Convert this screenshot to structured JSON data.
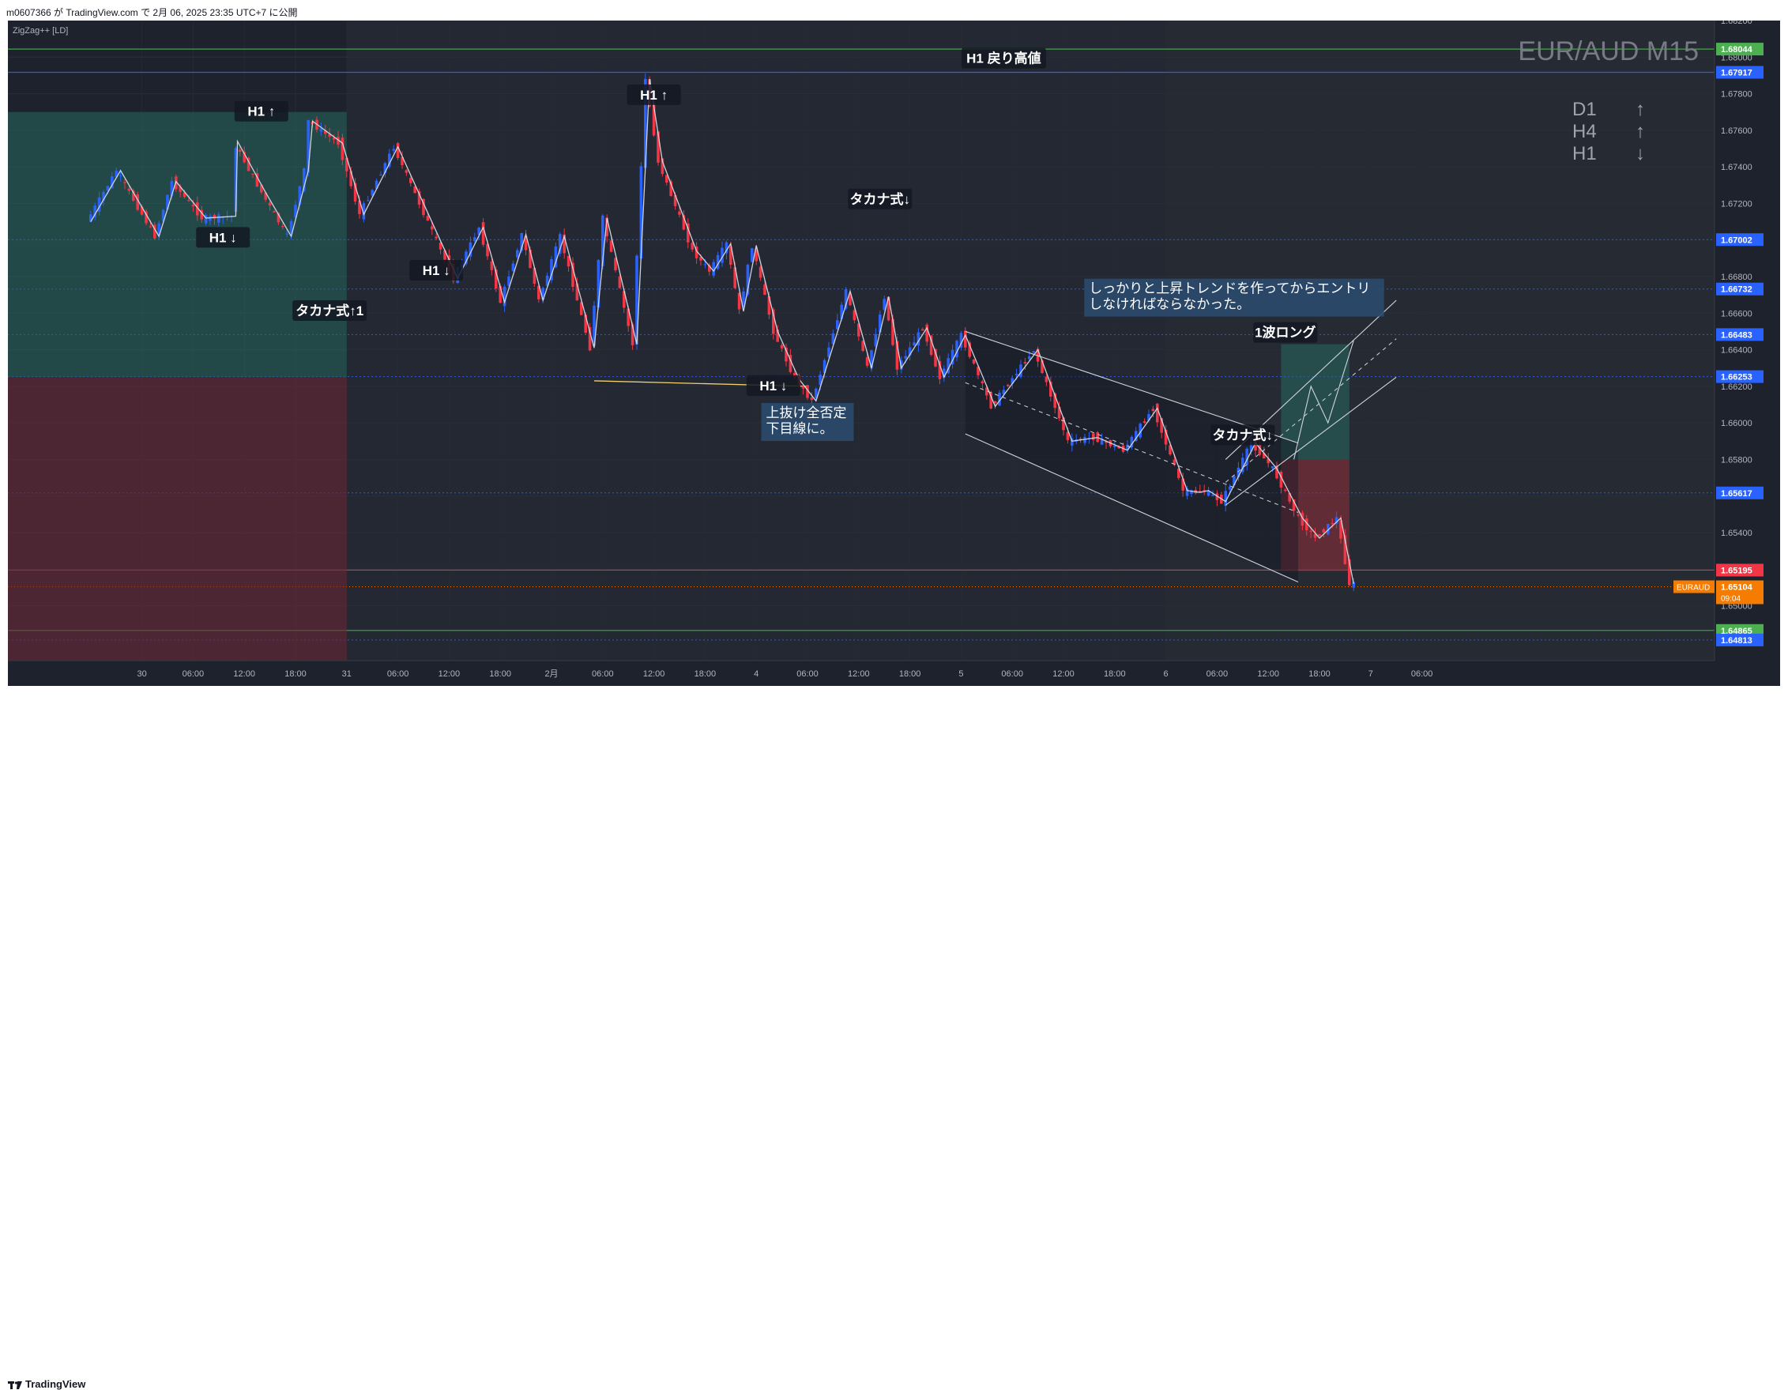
{
  "header": {
    "publish_info": "m0607366 が TradingView.com で 2月 06, 2025 23:35 UTC+7 に公開"
  },
  "footer": {
    "brand": "TradingView"
  },
  "indicator": {
    "label": "ZigZag++ [LD]"
  },
  "watermark": {
    "symbol_timeframe": "EUR/AUD M15"
  },
  "trend_panel": [
    {
      "tf": "D1",
      "arrow": "↑"
    },
    {
      "tf": "H4",
      "arrow": "↑"
    },
    {
      "tf": "H1",
      "arrow": "↓"
    }
  ],
  "colors": {
    "background": "#1e222d",
    "up_candle": "#2962ff",
    "down_candle": "#f23645",
    "zigzag": "#e0e3eb",
    "green_level": "#4caf50",
    "red_level": "#f23645",
    "blue_level": "#2962ff",
    "orange_price": "#f57c00"
  },
  "chart_data": {
    "type": "candlestick",
    "symbol": "EURAUD",
    "timeframe": "M15",
    "ylim": [
      1.647,
      1.682
    ],
    "y_ticks": [
      "1.68200",
      "1.68000",
      "1.67800",
      "1.67600",
      "1.67400",
      "1.67200",
      "1.67000",
      "1.66800",
      "1.66600",
      "1.66400",
      "1.66200",
      "1.66000",
      "1.65800",
      "1.65600",
      "1.65400",
      "1.65200",
      "1.65000"
    ],
    "x_ticks": [
      {
        "label": "30",
        "t": 12
      },
      {
        "label": "06:00",
        "t": 18
      },
      {
        "label": "12:00",
        "t": 24
      },
      {
        "label": "18:00",
        "t": 30
      },
      {
        "label": "31",
        "t": 36
      },
      {
        "label": "06:00",
        "t": 42
      },
      {
        "label": "12:00",
        "t": 48
      },
      {
        "label": "18:00",
        "t": 54
      },
      {
        "label": "2月",
        "t": 60
      },
      {
        "label": "06:00",
        "t": 66
      },
      {
        "label": "12:00",
        "t": 72
      },
      {
        "label": "18:00",
        "t": 78
      },
      {
        "label": "4",
        "t": 84
      },
      {
        "label": "06:00",
        "t": 90
      },
      {
        "label": "12:00",
        "t": 96
      },
      {
        "label": "18:00",
        "t": 102
      },
      {
        "label": "5",
        "t": 108
      },
      {
        "label": "06:00",
        "t": 114
      },
      {
        "label": "12:00",
        "t": 120
      },
      {
        "label": "18:00",
        "t": 126
      },
      {
        "label": "6",
        "t": 132
      },
      {
        "label": "06:00",
        "t": 138
      },
      {
        "label": "12:00",
        "t": 144
      },
      {
        "label": "18:00",
        "t": 150
      },
      {
        "label": "7",
        "t": 156
      },
      {
        "label": "06:00",
        "t": 162
      }
    ],
    "zigzag": [
      {
        "t": 6.0,
        "p": 1.671
      },
      {
        "t": 9.5,
        "p": 1.6738
      },
      {
        "t": 14.0,
        "p": 1.6702
      },
      {
        "t": 16.0,
        "p": 1.6732
      },
      {
        "t": 19.5,
        "p": 1.6712
      },
      {
        "t": 23.0,
        "p": 1.6713
      },
      {
        "t": 23.2,
        "p": 1.6754
      },
      {
        "t": 26.5,
        "p": 1.6726
      },
      {
        "t": 29.5,
        "p": 1.6702
      },
      {
        "t": 31.5,
        "p": 1.6738
      },
      {
        "t": 32.0,
        "p": 1.6765
      },
      {
        "t": 35.5,
        "p": 1.6753
      },
      {
        "t": 38.0,
        "p": 1.6714
      },
      {
        "t": 42.0,
        "p": 1.6751
      },
      {
        "t": 45.0,
        "p": 1.672
      },
      {
        "t": 49.0,
        "p": 1.6679
      },
      {
        "t": 52.0,
        "p": 1.6707
      },
      {
        "t": 54.5,
        "p": 1.6666
      },
      {
        "t": 57.0,
        "p": 1.6703
      },
      {
        "t": 59.0,
        "p": 1.6667
      },
      {
        "t": 61.5,
        "p": 1.6702
      },
      {
        "t": 65.0,
        "p": 1.6641
      },
      {
        "t": 66.5,
        "p": 1.6712
      },
      {
        "t": 70.0,
        "p": 1.6643
      },
      {
        "t": 71.5,
        "p": 1.6788
      },
      {
        "t": 73.0,
        "p": 1.6743
      },
      {
        "t": 77.0,
        "p": 1.6694
      },
      {
        "t": 79.0,
        "p": 1.6683
      },
      {
        "t": 81.0,
        "p": 1.6698
      },
      {
        "t": 82.5,
        "p": 1.6661
      },
      {
        "t": 84.0,
        "p": 1.6697
      },
      {
        "t": 86.5,
        "p": 1.665
      },
      {
        "t": 89.0,
        "p": 1.6624
      },
      {
        "t": 91.0,
        "p": 1.6612
      },
      {
        "t": 95.0,
        "p": 1.6672
      },
      {
        "t": 97.5,
        "p": 1.663
      },
      {
        "t": 99.5,
        "p": 1.6669
      },
      {
        "t": 101.0,
        "p": 1.663
      },
      {
        "t": 104.0,
        "p": 1.6652
      },
      {
        "t": 106.0,
        "p": 1.6625
      },
      {
        "t": 108.5,
        "p": 1.6648
      },
      {
        "t": 112.0,
        "p": 1.6609
      },
      {
        "t": 117.0,
        "p": 1.664
      },
      {
        "t": 121.0,
        "p": 1.659
      },
      {
        "t": 124.0,
        "p": 1.6592
      },
      {
        "t": 127.5,
        "p": 1.6585
      },
      {
        "t": 131.0,
        "p": 1.6608
      },
      {
        "t": 134.5,
        "p": 1.6563
      },
      {
        "t": 136.0,
        "p": 1.6562
      },
      {
        "t": 137.0,
        "p": 1.6563
      },
      {
        "t": 139.0,
        "p": 1.6557
      },
      {
        "t": 142.5,
        "p": 1.6589
      },
      {
        "t": 145.0,
        "p": 1.6575
      },
      {
        "t": 148.0,
        "p": 1.6548
      },
      {
        "t": 150.0,
        "p": 1.6537
      },
      {
        "t": 152.5,
        "p": 1.6548
      },
      {
        "t": 154.0,
        "p": 1.6512
      }
    ],
    "levels": [
      {
        "label": "1.68044",
        "price": 1.68044,
        "color": "#4caf50",
        "style": "solid"
      },
      {
        "label": "1.67917",
        "price": 1.67917,
        "color": "#2962ff",
        "style": "solid"
      },
      {
        "label": "1.67002",
        "price": 1.67002,
        "color": "#2962ff",
        "style": "dotted"
      },
      {
        "label": "1.66732",
        "price": 1.66732,
        "color": "#2962ff",
        "style": "dotted"
      },
      {
        "label": "1.66483",
        "price": 1.66483,
        "color": "#2962ff",
        "style": "dotted"
      },
      {
        "label": "1.66253",
        "price": 1.66253,
        "color": "#2962ff",
        "style": "dotted"
      },
      {
        "label": "1.65617",
        "price": 1.65617,
        "color": "#2962ff",
        "style": "dotted"
      },
      {
        "label": "1.65195",
        "price": 1.65195,
        "color": "#f23645",
        "style": "solid"
      },
      {
        "label": "1.64865",
        "price": 1.64865,
        "color": "#4caf50",
        "style": "solid"
      },
      {
        "label": "1.64813",
        "price": 1.64813,
        "color": "#2962ff",
        "style": "dotted"
      }
    ],
    "current_price": {
      "symbol": "EURAUD",
      "price": "1.65104",
      "countdown": "09:04",
      "value": 1.65104
    },
    "annotations": [
      {
        "text": "H1 ↑",
        "t": 26.0,
        "p": 1.677
      },
      {
        "text": "H1 ↓",
        "t": 21.5,
        "p": 1.6701
      },
      {
        "text": "タカナ式↑1",
        "t": 34.0,
        "p": 1.6661
      },
      {
        "text": "H1 ↑",
        "t": 72.0,
        "p": 1.6779
      },
      {
        "text": "H1 ↓",
        "t": 46.5,
        "p": 1.6683
      },
      {
        "text": "タカナ式↓",
        "t": 98.5,
        "p": 1.6722
      },
      {
        "text": "H1 ↓",
        "t": 86.0,
        "p": 1.662
      },
      {
        "text": "H1 戻り高値",
        "t": 113.0,
        "p": 1.6799
      },
      {
        "text": "タカナ式↓",
        "t": 141.0,
        "p": 1.6593
      },
      {
        "text": "1波ロング",
        "t": 146.0,
        "p": 1.6649
      }
    ],
    "notes": [
      {
        "lines": [
          "上抜け全否定",
          "下目線に。"
        ],
        "t": 90.0,
        "p": 1.661
      },
      {
        "lines": [
          "しっかりと上昇トレンドを作ってからエントリ",
          "しなければならなかった。"
        ],
        "t": 140.0,
        "p": 1.6678
      }
    ],
    "position_long": {
      "entry": 1.658,
      "target": 1.6643,
      "stop": 1.6519,
      "t_start": 145.5,
      "t_end": 153.5
    },
    "channel_down": {
      "t1": 108.5,
      "upper1": 1.665,
      "lower1": 1.6594,
      "t2": 147.5,
      "upper2": 1.6589,
      "lower2": 1.6513
    },
    "channel_up": {
      "t1": 139.0,
      "upper1": 1.658,
      "lower1": 1.6555,
      "t2": 159.0,
      "upper2": 1.6667,
      "lower2": 1.6625
    }
  }
}
